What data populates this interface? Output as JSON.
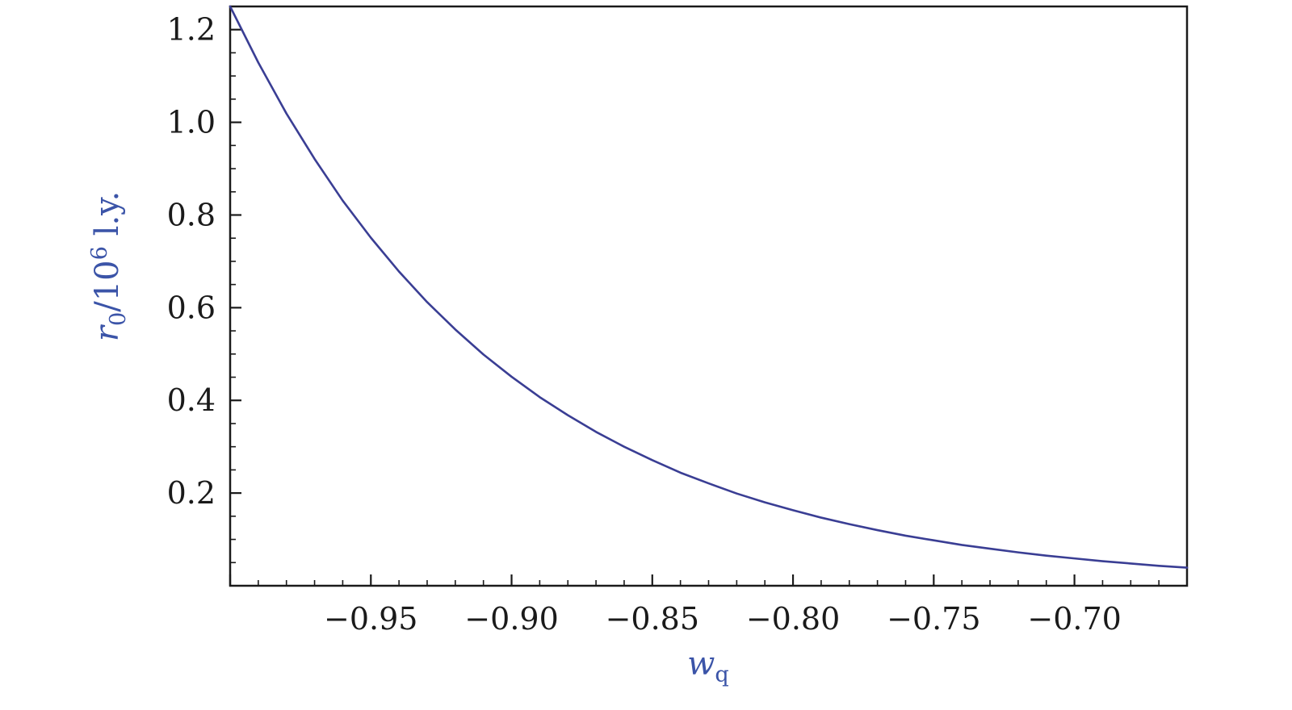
{
  "styles": {
    "curve_color": "#3a3e94",
    "label_color": "#3b54a8",
    "tick_label_color": "#1a1a1a",
    "frame_color": "#1a1a1a",
    "background": "#ffffff"
  },
  "chart_data": {
    "type": "line",
    "title": "",
    "xlabel": {
      "base": "w",
      "sub": "q"
    },
    "ylabel": {
      "pre": "r",
      "sub": "0",
      "mid": "/10",
      "sup": "6",
      "post": " l.y."
    },
    "xlim": [
      -1.0,
      -0.66
    ],
    "ylim": [
      0,
      1.25
    ],
    "grid": false,
    "frame": true,
    "legend": null,
    "xticks": {
      "major": [
        -0.95,
        -0.9,
        -0.85,
        -0.8,
        -0.75,
        -0.7
      ],
      "labels": [
        "−0.95",
        "−0.90",
        "−0.85",
        "−0.80",
        "−0.75",
        "−0.70"
      ],
      "minor_step": 0.01
    },
    "yticks": {
      "major": [
        0.2,
        0.4,
        0.6,
        0.8,
        1.0,
        1.2
      ],
      "labels": [
        "0.2",
        "0.4",
        "0.6",
        "0.8",
        "1.0",
        "1.2"
      ],
      "minor_step": 0.05
    },
    "series": [
      {
        "name": "r0 vs wq",
        "color": "#3a3e94",
        "x": [
          -1.0,
          -0.99,
          -0.98,
          -0.97,
          -0.96,
          -0.95,
          -0.94,
          -0.93,
          -0.92,
          -0.91,
          -0.9,
          -0.89,
          -0.88,
          -0.87,
          -0.86,
          -0.85,
          -0.84,
          -0.83,
          -0.82,
          -0.81,
          -0.8,
          -0.79,
          -0.78,
          -0.77,
          -0.76,
          -0.75,
          -0.74,
          -0.73,
          -0.72,
          -0.71,
          -0.7,
          -0.69,
          -0.68,
          -0.67,
          -0.66
        ],
        "y": [
          1.25,
          1.129,
          1.019,
          0.921,
          0.831,
          0.751,
          0.678,
          0.612,
          0.553,
          0.499,
          0.451,
          0.407,
          0.368,
          0.332,
          0.3,
          0.271,
          0.244,
          0.221,
          0.199,
          0.18,
          0.163,
          0.147,
          0.133,
          0.12,
          0.108,
          0.098,
          0.088,
          0.08,
          0.072,
          0.065,
          0.059,
          0.053,
          0.048,
          0.043,
          0.039
        ]
      }
    ]
  }
}
